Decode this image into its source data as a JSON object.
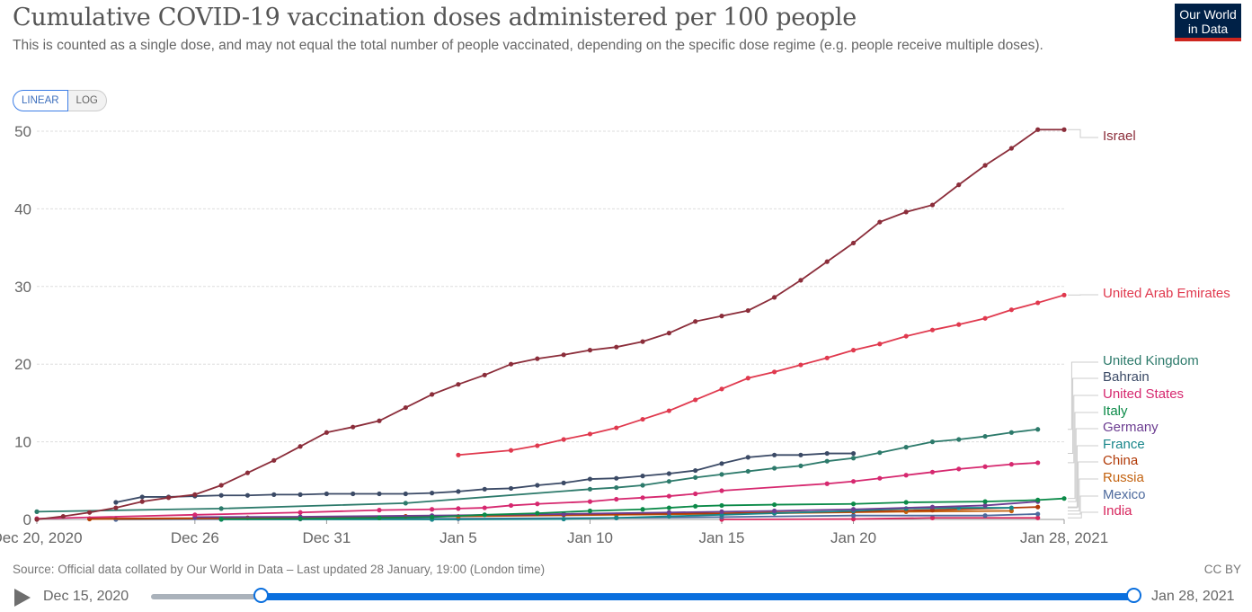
{
  "header": {
    "title": "Cumulative COVID-19 vaccination doses administered per 100 people",
    "subtitle": "This is counted as a single dose, and may not equal the total number of people vaccinated, depending on the specific dose regime (e.g. people receive multiple doses).",
    "logo_line1": "Our World",
    "logo_line2": "in Data"
  },
  "scale_toggle": {
    "linear": "LINEAR",
    "log": "LOG",
    "selected": "LINEAR"
  },
  "footer": {
    "source": "Source: Official data collated by Our World in Data – Last updated 28 January, 19:00 (London time)",
    "license": "CC BY"
  },
  "timeline": {
    "start_label": "Dec 15, 2020",
    "end_label": "Jan 28, 2021",
    "play_icon": "play-icon"
  },
  "chart_data": {
    "type": "line",
    "title": "Cumulative COVID-19 vaccination doses administered per 100 people",
    "x_unit": "days since Dec 20, 2020",
    "xlim": [
      0,
      39
    ],
    "ylim": [
      0,
      50
    ],
    "x_ticks": [
      {
        "v": 0,
        "label": "Dec 20, 2020"
      },
      {
        "v": 6,
        "label": "Dec 26"
      },
      {
        "v": 11,
        "label": "Dec 31"
      },
      {
        "v": 16,
        "label": "Jan 5"
      },
      {
        "v": 21,
        "label": "Jan 10"
      },
      {
        "v": 26,
        "label": "Jan 15"
      },
      {
        "v": 31,
        "label": "Jan 20"
      },
      {
        "v": 39,
        "label": "Jan 28, 2021"
      }
    ],
    "y_ticks": [
      0,
      10,
      20,
      30,
      40,
      50
    ],
    "grid": true,
    "legend": "right (end labels)",
    "series": [
      {
        "name": "Israel",
        "color": "#8b2d3a",
        "points": [
          [
            0,
            0
          ],
          [
            1,
            0.4
          ],
          [
            2,
            0.9
          ],
          [
            3,
            1.5
          ],
          [
            4,
            2.3
          ],
          [
            5,
            2.8
          ],
          [
            6,
            3.2
          ],
          [
            7,
            4.4
          ],
          [
            8,
            6.0
          ],
          [
            9,
            7.6
          ],
          [
            10,
            9.4
          ],
          [
            11,
            11.2
          ],
          [
            12,
            11.9
          ],
          [
            13,
            12.7
          ],
          [
            14,
            14.4
          ],
          [
            15,
            16.1
          ],
          [
            16,
            17.4
          ],
          [
            17,
            18.6
          ],
          [
            18,
            20.0
          ],
          [
            19,
            20.7
          ],
          [
            20,
            21.2
          ],
          [
            21,
            21.8
          ],
          [
            22,
            22.2
          ],
          [
            23,
            22.9
          ],
          [
            24,
            24.0
          ],
          [
            25,
            25.5
          ],
          [
            26,
            26.2
          ],
          [
            27,
            26.9
          ],
          [
            28,
            28.6
          ],
          [
            29,
            30.8
          ],
          [
            30,
            33.2
          ],
          [
            31,
            35.6
          ],
          [
            32,
            38.3
          ],
          [
            33,
            39.6
          ],
          [
            34,
            40.5
          ],
          [
            35,
            43.1
          ],
          [
            36,
            45.6
          ],
          [
            37,
            47.8
          ],
          [
            38,
            50.2
          ],
          [
            39,
            50.2
          ]
        ]
      },
      {
        "name": "United Arab Emirates",
        "color": "#e0394e",
        "points": [
          [
            16,
            8.3
          ],
          [
            18,
            8.9
          ],
          [
            19,
            9.5
          ],
          [
            20,
            10.3
          ],
          [
            21,
            11.0
          ],
          [
            22,
            11.8
          ],
          [
            23,
            12.9
          ],
          [
            24,
            14.0
          ],
          [
            25,
            15.4
          ],
          [
            26,
            16.8
          ],
          [
            27,
            18.2
          ],
          [
            28,
            19.0
          ],
          [
            29,
            19.9
          ],
          [
            30,
            20.8
          ],
          [
            31,
            21.8
          ],
          [
            32,
            22.6
          ],
          [
            33,
            23.6
          ],
          [
            34,
            24.4
          ],
          [
            35,
            25.1
          ],
          [
            36,
            25.9
          ],
          [
            37,
            27.0
          ],
          [
            38,
            27.9
          ],
          [
            39,
            28.9
          ]
        ]
      },
      {
        "name": "United Kingdom",
        "color": "#2d7a6b",
        "points": [
          [
            0,
            1.0
          ],
          [
            7,
            1.4
          ],
          [
            14,
            2.1
          ],
          [
            21,
            3.9
          ],
          [
            22,
            4.1
          ],
          [
            23,
            4.4
          ],
          [
            24,
            4.9
          ],
          [
            25,
            5.4
          ],
          [
            26,
            5.8
          ],
          [
            27,
            6.2
          ],
          [
            28,
            6.6
          ],
          [
            29,
            6.9
          ],
          [
            30,
            7.5
          ],
          [
            31,
            7.9
          ],
          [
            32,
            8.6
          ],
          [
            33,
            9.3
          ],
          [
            34,
            10.0
          ],
          [
            35,
            10.3
          ],
          [
            36,
            10.7
          ],
          [
            37,
            11.2
          ],
          [
            38,
            11.6
          ]
        ]
      },
      {
        "name": "Bahrain",
        "color": "#3b4a66",
        "points": [
          [
            3,
            2.2
          ],
          [
            4,
            2.9
          ],
          [
            5,
            2.9
          ],
          [
            6,
            3.0
          ],
          [
            7,
            3.1
          ],
          [
            8,
            3.1
          ],
          [
            9,
            3.2
          ],
          [
            10,
            3.2
          ],
          [
            11,
            3.3
          ],
          [
            12,
            3.3
          ],
          [
            13,
            3.3
          ],
          [
            14,
            3.3
          ],
          [
            15,
            3.4
          ],
          [
            16,
            3.6
          ],
          [
            17,
            3.9
          ],
          [
            18,
            4.0
          ],
          [
            19,
            4.4
          ],
          [
            20,
            4.7
          ],
          [
            21,
            5.2
          ],
          [
            22,
            5.3
          ],
          [
            23,
            5.6
          ],
          [
            24,
            5.9
          ],
          [
            25,
            6.3
          ],
          [
            26,
            7.2
          ],
          [
            27,
            8.0
          ],
          [
            28,
            8.3
          ],
          [
            29,
            8.3
          ],
          [
            30,
            8.5
          ],
          [
            31,
            8.5
          ]
        ]
      },
      {
        "name": "United States",
        "color": "#d6286f",
        "points": [
          [
            0,
            0.1
          ],
          [
            6,
            0.6
          ],
          [
            10,
            0.9
          ],
          [
            13,
            1.2
          ],
          [
            15,
            1.3
          ],
          [
            16,
            1.4
          ],
          [
            17,
            1.5
          ],
          [
            18,
            1.8
          ],
          [
            19,
            2.0
          ],
          [
            21,
            2.3
          ],
          [
            22,
            2.6
          ],
          [
            23,
            2.8
          ],
          [
            24,
            3.0
          ],
          [
            25,
            3.3
          ],
          [
            26,
            3.7
          ],
          [
            30,
            4.6
          ],
          [
            31,
            4.9
          ],
          [
            32,
            5.3
          ],
          [
            33,
            5.7
          ],
          [
            34,
            6.1
          ],
          [
            35,
            6.5
          ],
          [
            36,
            6.8
          ],
          [
            37,
            7.1
          ],
          [
            38,
            7.3
          ]
        ]
      },
      {
        "name": "Italy",
        "color": "#0b8a48",
        "points": [
          [
            7,
            0.05
          ],
          [
            10,
            0.1
          ],
          [
            13,
            0.2
          ],
          [
            15,
            0.3
          ],
          [
            17,
            0.6
          ],
          [
            19,
            0.8
          ],
          [
            21,
            1.1
          ],
          [
            23,
            1.3
          ],
          [
            24,
            1.5
          ],
          [
            25,
            1.7
          ],
          [
            26,
            1.8
          ],
          [
            28,
            1.9
          ],
          [
            31,
            2.0
          ],
          [
            33,
            2.2
          ],
          [
            36,
            2.3
          ],
          [
            38,
            2.5
          ],
          [
            39,
            2.7
          ]
        ]
      },
      {
        "name": "Germany",
        "color": "#6c3d91",
        "points": [
          [
            6,
            0.3
          ],
          [
            10,
            0.35
          ],
          [
            15,
            0.5
          ],
          [
            20,
            0.7
          ],
          [
            24,
            0.9
          ],
          [
            26,
            1.0
          ],
          [
            28,
            1.1
          ],
          [
            31,
            1.3
          ],
          [
            34,
            1.6
          ],
          [
            36,
            1.8
          ],
          [
            38,
            2.3
          ]
        ]
      },
      {
        "name": "France",
        "color": "#18868a",
        "points": [
          [
            7,
            0.0
          ],
          [
            15,
            0.0
          ],
          [
            20,
            0.05
          ],
          [
            22,
            0.2
          ],
          [
            24,
            0.4
          ],
          [
            26,
            0.6
          ],
          [
            28,
            0.8
          ],
          [
            31,
            1.1
          ],
          [
            33,
            1.4
          ],
          [
            35,
            1.5
          ],
          [
            37,
            1.5
          ]
        ]
      },
      {
        "name": "China",
        "color": "#b13a07",
        "points": [
          [
            2,
            0.1
          ],
          [
            8,
            0.2
          ],
          [
            14,
            0.4
          ],
          [
            20,
            0.6
          ],
          [
            26,
            0.8
          ],
          [
            31,
            1.0
          ],
          [
            34,
            1.2
          ],
          [
            38,
            1.6
          ]
        ]
      },
      {
        "name": "Russia",
        "color": "#c3620f",
        "points": [
          [
            2,
            0.05
          ],
          [
            10,
            0.2
          ],
          [
            16,
            0.4
          ],
          [
            22,
            0.6
          ],
          [
            28,
            0.8
          ],
          [
            33,
            1.0
          ],
          [
            37,
            1.1
          ]
        ]
      },
      {
        "name": "Mexico",
        "color": "#4d6a9d",
        "points": [
          [
            3,
            0.0
          ],
          [
            10,
            0.05
          ],
          [
            16,
            0.1
          ],
          [
            22,
            0.2
          ],
          [
            26,
            0.3
          ],
          [
            31,
            0.5
          ],
          [
            36,
            0.5
          ],
          [
            38,
            0.7
          ]
        ]
      },
      {
        "name": "India",
        "color": "#d7265d",
        "points": [
          [
            26,
            0.0
          ],
          [
            31,
            0.05
          ],
          [
            34,
            0.2
          ],
          [
            38,
            0.2
          ]
        ]
      }
    ]
  }
}
